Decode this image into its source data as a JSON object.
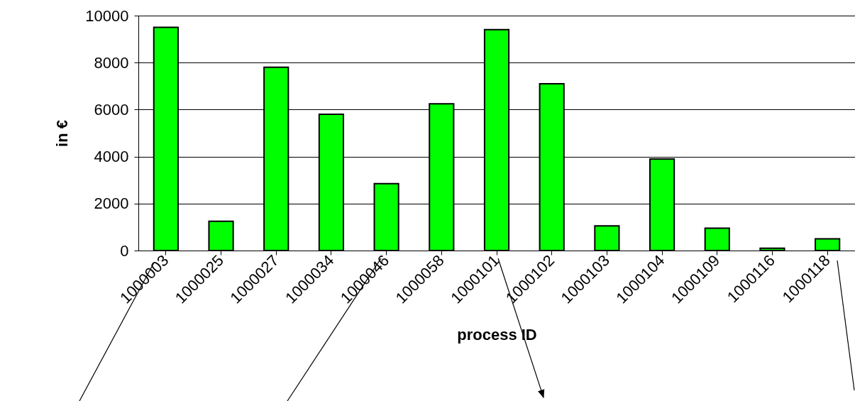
{
  "chart_data": {
    "type": "bar",
    "xlabel": "process ID",
    "ylabel": "in €",
    "categories": [
      "1000003",
      "1000025",
      "1000027",
      "1000034",
      "1000046",
      "1000058",
      "1000101",
      "1000102",
      "1000103",
      "1000104",
      "1000109",
      "1000116",
      "1000118"
    ],
    "values": [
      9500,
      1250,
      7800,
      5800,
      2850,
      6250,
      9400,
      7100,
      1050,
      3900,
      950,
      100,
      500
    ],
    "color": "#00ff00",
    "ylim": [
      0,
      10000
    ],
    "yticks": [
      0,
      2000,
      4000,
      6000,
      8000,
      10000
    ],
    "grid": "y"
  }
}
